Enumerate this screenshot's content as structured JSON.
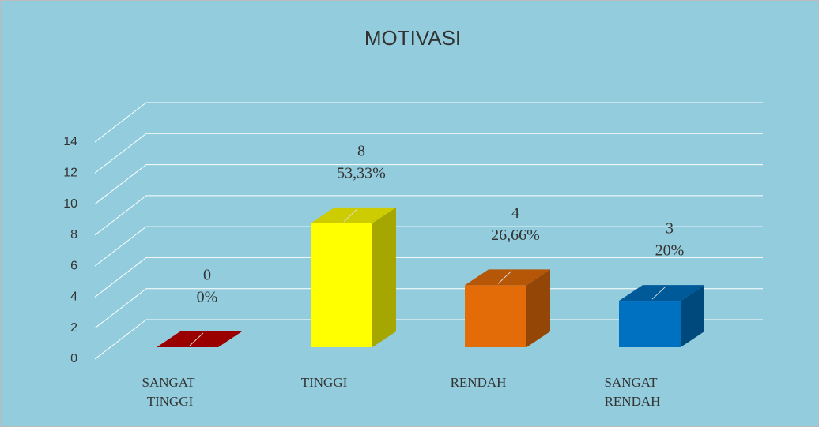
{
  "chart_data": {
    "type": "bar3d",
    "title": "MOTIVASI",
    "categories": [
      "SANGAT TINGGI",
      "TINGGI",
      "RENDAH",
      "SANGAT RENDAH"
    ],
    "values": [
      0,
      8,
      4,
      3
    ],
    "percentages": [
      0,
      53.33,
      26.66,
      20
    ],
    "percentage_labels": [
      "0%",
      "53,33%",
      "26,66%",
      "20%"
    ],
    "colors": [
      "#c00000",
      "#ffff00",
      "#e36c09",
      "#0070c0"
    ],
    "ylim": [
      0,
      14
    ],
    "yticks": [
      0,
      2,
      4,
      6,
      8,
      10,
      12,
      14
    ],
    "grid": true
  }
}
